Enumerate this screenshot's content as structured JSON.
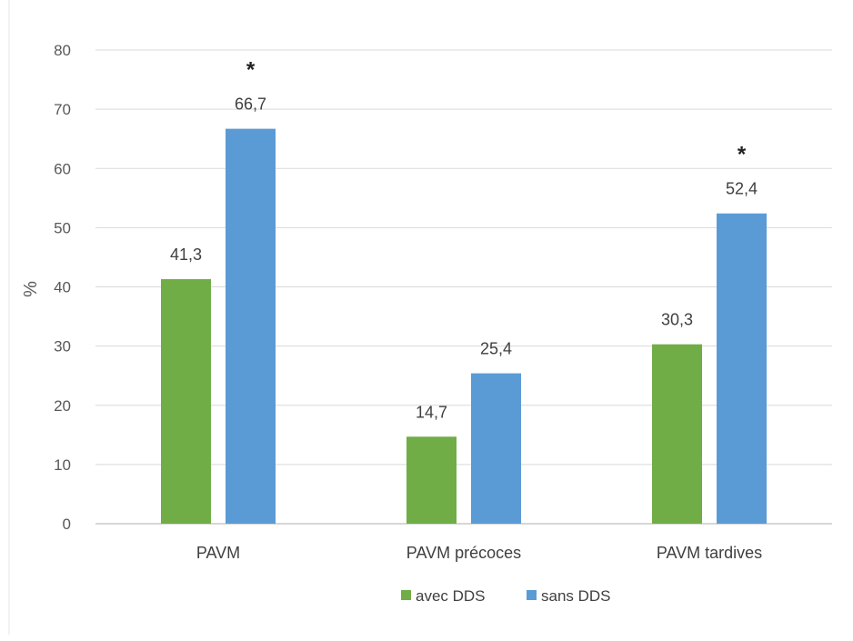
{
  "chart_data": {
    "type": "bar",
    "categories": [
      "PAVM",
      "PAVM précoces",
      "PAVM tardives"
    ],
    "series": [
      {
        "name": "avec DDS",
        "color": "#70ad47",
        "values": [
          41.3,
          14.7,
          30.3
        ],
        "labels": [
          "41,3",
          "14,7",
          "30,3"
        ]
      },
      {
        "name": "sans DDS",
        "color": "#5b9bd5",
        "values": [
          66.7,
          25.4,
          52.4
        ],
        "labels": [
          "66,7",
          "25,4",
          "52,4"
        ]
      }
    ],
    "ylabel": "%",
    "ylim": [
      0,
      80
    ],
    "yticks": [
      0,
      10,
      20,
      30,
      40,
      50,
      60,
      70,
      80
    ],
    "grid": true,
    "legend_position": "bottom",
    "annotations": [
      {
        "text": "*",
        "category": 0,
        "series": 1
      },
      {
        "text": "*",
        "category": 2,
        "series": 1
      }
    ],
    "colors": {
      "gridline": "#d9d9d9",
      "axis": "#bfbfbf"
    }
  }
}
